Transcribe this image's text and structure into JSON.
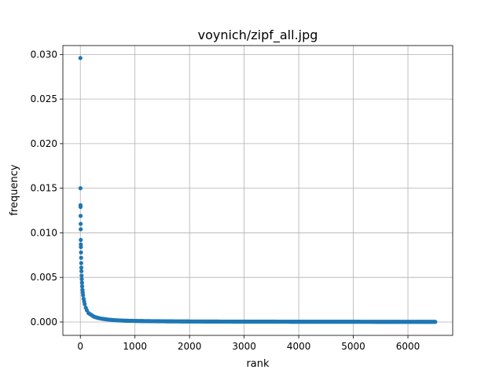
{
  "chart_data": {
    "type": "scatter",
    "title": "voynich/zipf_all.jpg",
    "xlabel": "rank",
    "ylabel": "frequency",
    "xlim": [
      -320,
      6820
    ],
    "ylim": [
      -0.0015,
      0.031
    ],
    "xticks": [
      0,
      1000,
      2000,
      3000,
      4000,
      5000,
      6000
    ],
    "xtick_labels": [
      "0",
      "1000",
      "2000",
      "3000",
      "4000",
      "5000",
      "6000"
    ],
    "yticks": [
      0.0,
      0.005,
      0.01,
      0.015,
      0.02,
      0.025,
      0.03
    ],
    "ytick_labels": [
      "0.000",
      "0.005",
      "0.010",
      "0.015",
      "0.020",
      "0.025",
      "0.030"
    ],
    "grid": true,
    "marker_color": "#1f77b4",
    "series": [
      {
        "x": [
          1,
          2,
          3,
          4,
          5,
          6,
          7,
          8,
          9,
          10,
          12,
          14,
          16,
          18,
          20,
          23,
          26,
          30,
          35,
          40,
          45,
          50,
          60,
          70,
          80,
          100,
          120,
          150,
          200,
          250,
          300,
          350,
          400,
          500,
          600,
          700,
          800,
          1000,
          1200,
          1500,
          2000,
          2500,
          3000,
          3500,
          4000,
          4500,
          5000,
          5500,
          6000,
          6300,
          6500
        ],
        "y": [
          0.0296,
          0.015,
          0.0131,
          0.0129,
          0.0119,
          0.011,
          0.0104,
          0.0092,
          0.0087,
          0.0084,
          0.0078,
          0.0072,
          0.0066,
          0.0061,
          0.0057,
          0.0052,
          0.0048,
          0.0044,
          0.004,
          0.0036,
          0.0033,
          0.003,
          0.0026,
          0.0023,
          0.002,
          0.0016,
          0.0013,
          0.001,
          0.0008,
          0.0006,
          0.0005,
          0.00042,
          0.00036,
          0.00028,
          0.00022,
          0.00018,
          0.00015,
          0.00012,
          0.0001,
          8e-05,
          6e-05,
          5e-05,
          4e-05,
          4e-05,
          3e-05,
          3e-05,
          3e-05,
          2e-05,
          2e-05,
          2e-05,
          2e-05
        ]
      }
    ]
  }
}
